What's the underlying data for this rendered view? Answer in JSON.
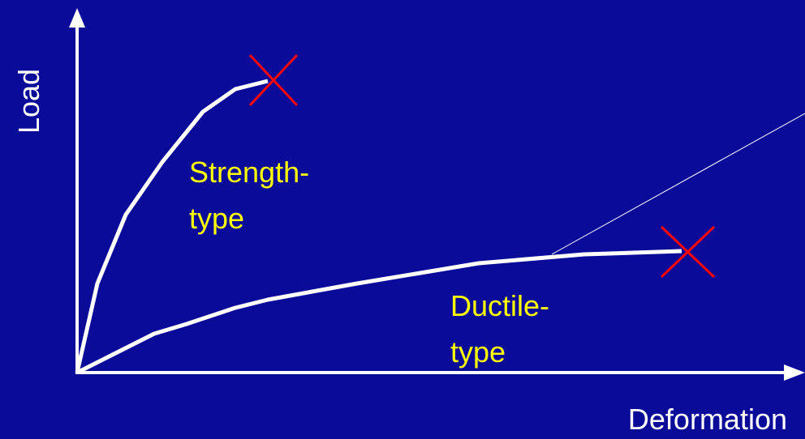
{
  "axes": {
    "y_label": "Load",
    "x_label": "Deformation"
  },
  "curves": [
    {
      "label_lines": [
        "Strength-",
        "type"
      ]
    },
    {
      "label_lines": [
        "Ductile-",
        "type"
      ]
    }
  ]
}
